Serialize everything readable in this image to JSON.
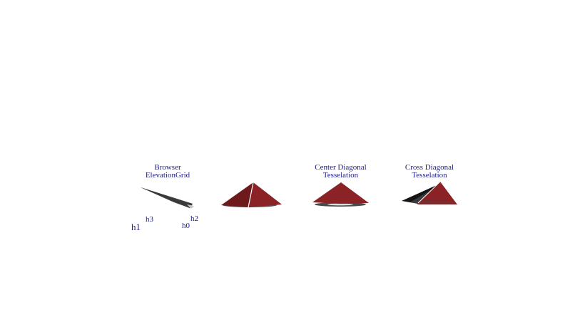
{
  "scene": {
    "background": "#ffffff",
    "label_color": "#1a1a8c",
    "surface_color": "#8b2226",
    "shadow_color": "#1c1c1c"
  },
  "labels": {
    "browser": {
      "line1": "Browser",
      "line2": "ElevationGrid"
    },
    "center": {
      "line1": "Center Diagonal",
      "line2": "Tesselation"
    },
    "cross": {
      "line1": "Cross Diagonal",
      "line2": "Tesselation"
    }
  },
  "corners": {
    "h0": "h0",
    "h1": "h1",
    "h2": "h2",
    "h3": "h3"
  }
}
